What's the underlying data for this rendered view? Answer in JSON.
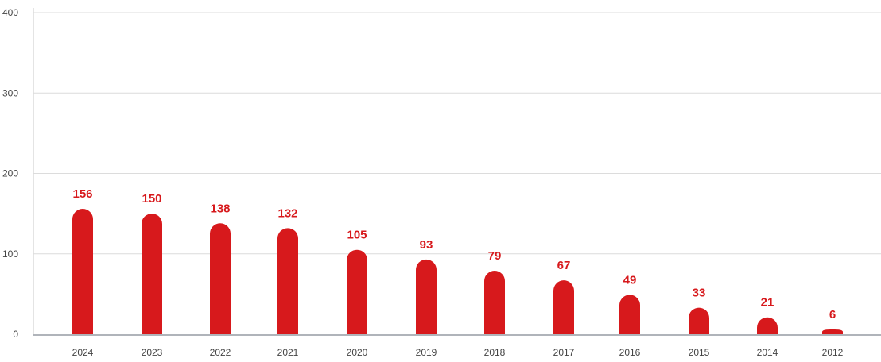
{
  "chart_data": {
    "type": "bar",
    "title": "",
    "xlabel": "",
    "ylabel": "",
    "categories": [
      "2024",
      "2023",
      "2022",
      "2021",
      "2020",
      "2019",
      "2018",
      "2017",
      "2016",
      "2015",
      "2014",
      "2012"
    ],
    "values": [
      156,
      150,
      138,
      132,
      105,
      93,
      79,
      67,
      49,
      33,
      21,
      6
    ],
    "ylim": [
      0,
      400
    ],
    "yticks": [
      0,
      100,
      200,
      300,
      400
    ],
    "grid": true,
    "data_labels": true,
    "colors": {
      "bar": "#d7191c",
      "label": "#d7191c",
      "grid": "#dcdcdc",
      "axis": "#b0b4ba",
      "tick_text": "#444444"
    }
  }
}
